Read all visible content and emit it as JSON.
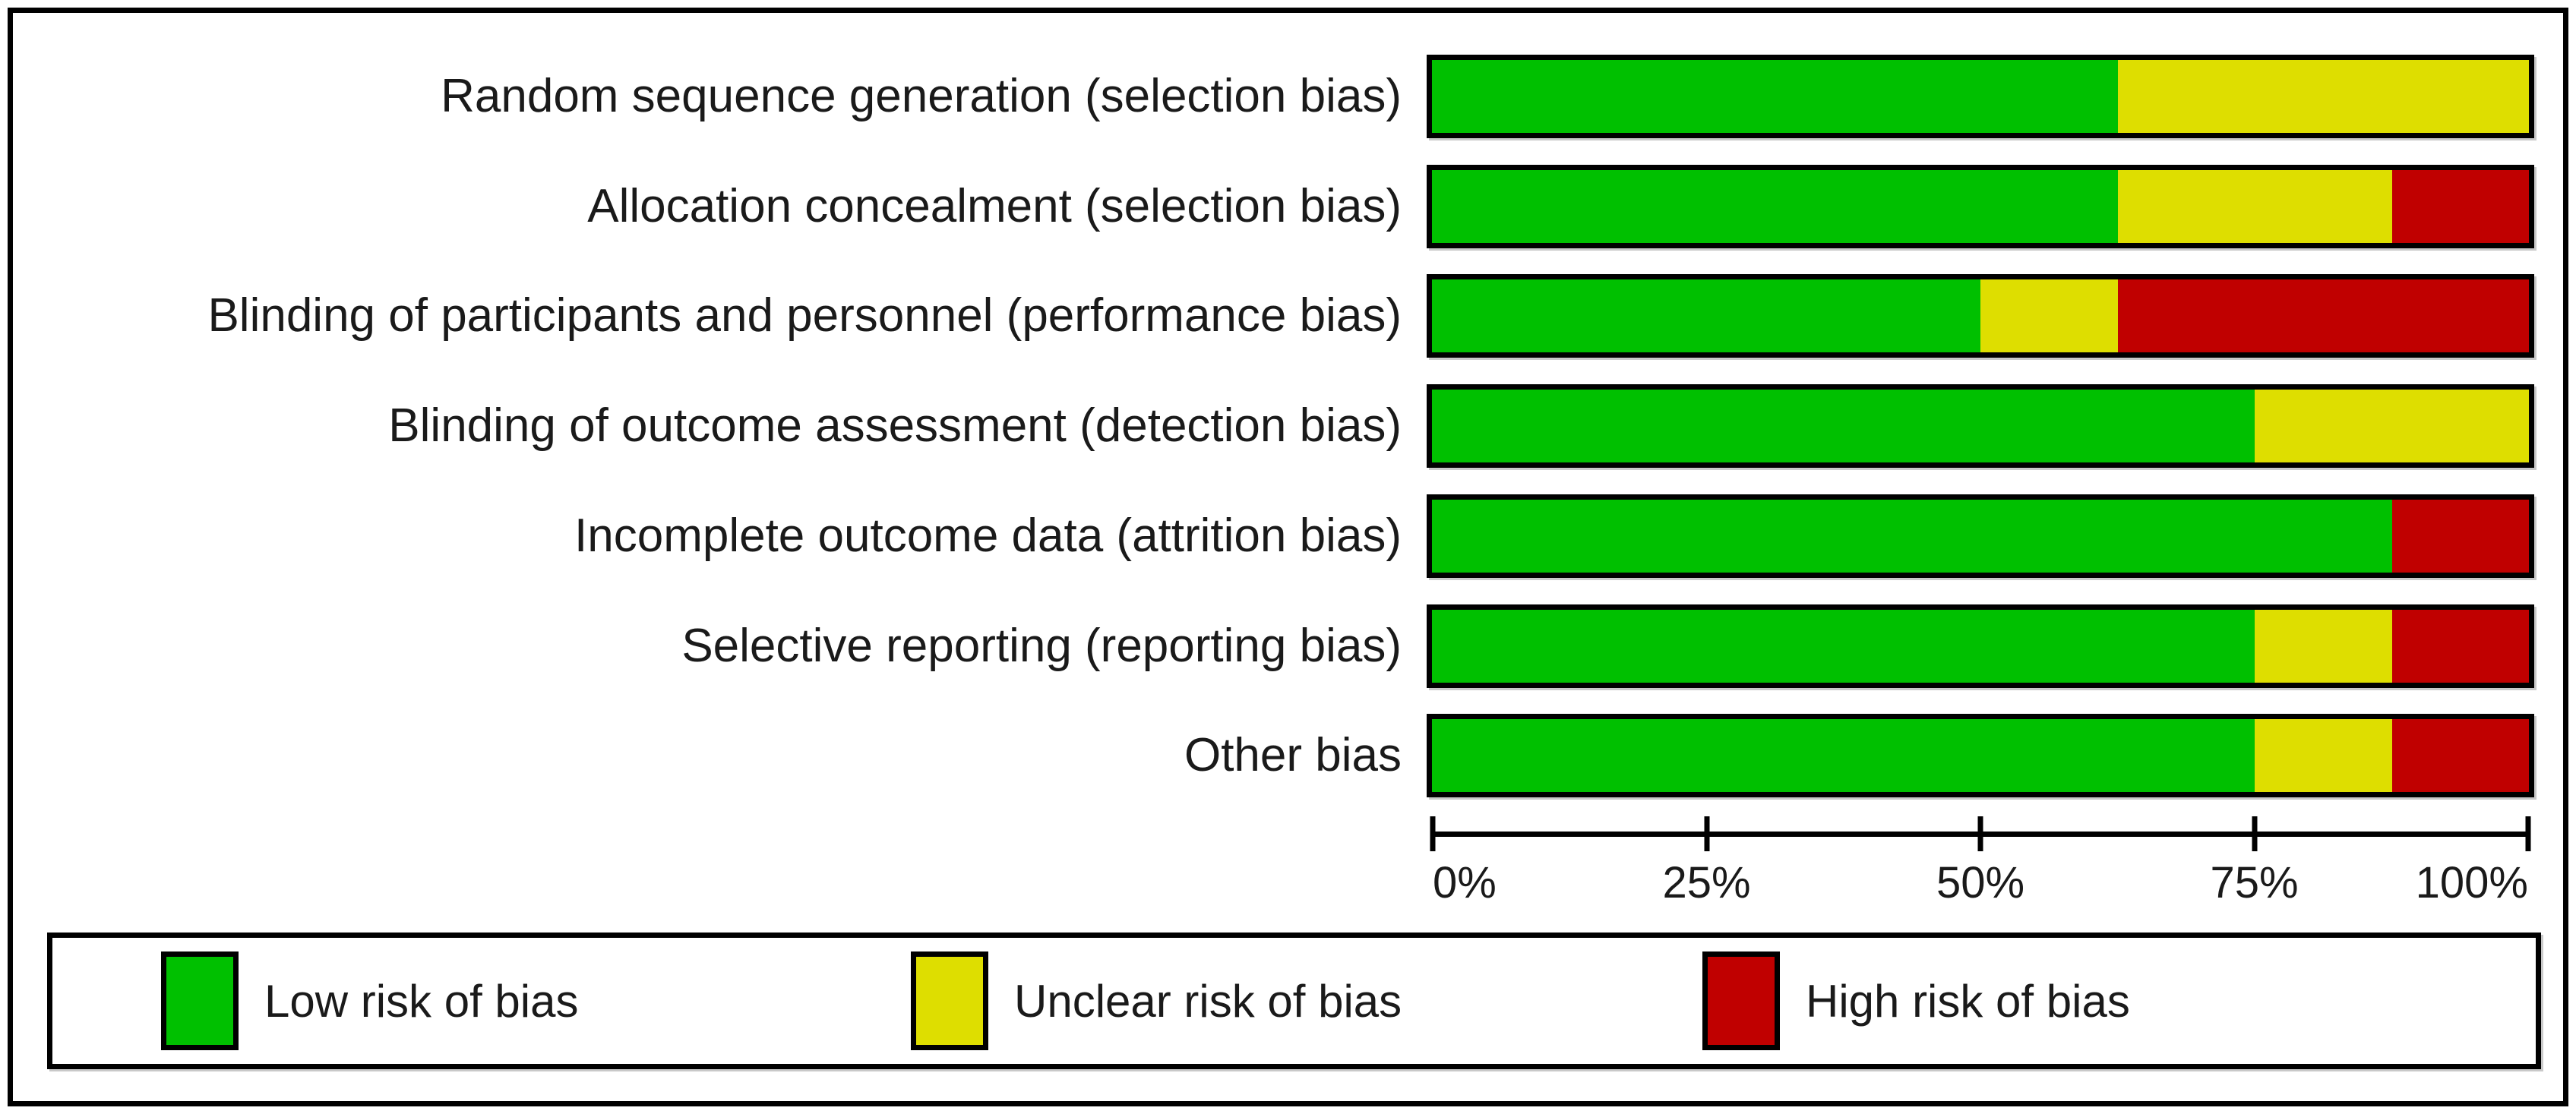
{
  "chart_data": {
    "type": "bar",
    "orientation": "horizontal",
    "stacked": true,
    "title": "",
    "xlabel": "",
    "ylabel": "",
    "xlim": [
      0,
      100
    ],
    "x_ticks": [
      "0%",
      "25%",
      "50%",
      "75%",
      "100%"
    ],
    "grid": false,
    "legend_position": "bottom",
    "categories": [
      "Random sequence generation (selection bias)",
      "Allocation concealment (selection bias)",
      "Blinding of participants and personnel (performance bias)",
      "Blinding of outcome assessment (detection bias)",
      "Incomplete outcome data (attrition bias)",
      "Selective reporting (reporting bias)",
      "Other bias"
    ],
    "series": [
      {
        "name": "Low risk of bias",
        "color": "#00C000",
        "values": [
          62.5,
          62.5,
          50,
          75,
          87.5,
          75,
          75
        ]
      },
      {
        "name": "Unclear risk of bias",
        "color": "#DEDE00",
        "values": [
          37.5,
          25,
          12.5,
          25,
          0,
          12.5,
          12.5
        ]
      },
      {
        "name": "High risk of bias",
        "color": "#C00000",
        "values": [
          0,
          12.5,
          37.5,
          0,
          12.5,
          12.5,
          12.5
        ]
      }
    ],
    "colors": {
      "low": "#00C000",
      "unclear": "#DEDE00",
      "high": "#C00000",
      "border": "#000000",
      "text": "#1a1a1a",
      "background": "#ffffff"
    }
  }
}
